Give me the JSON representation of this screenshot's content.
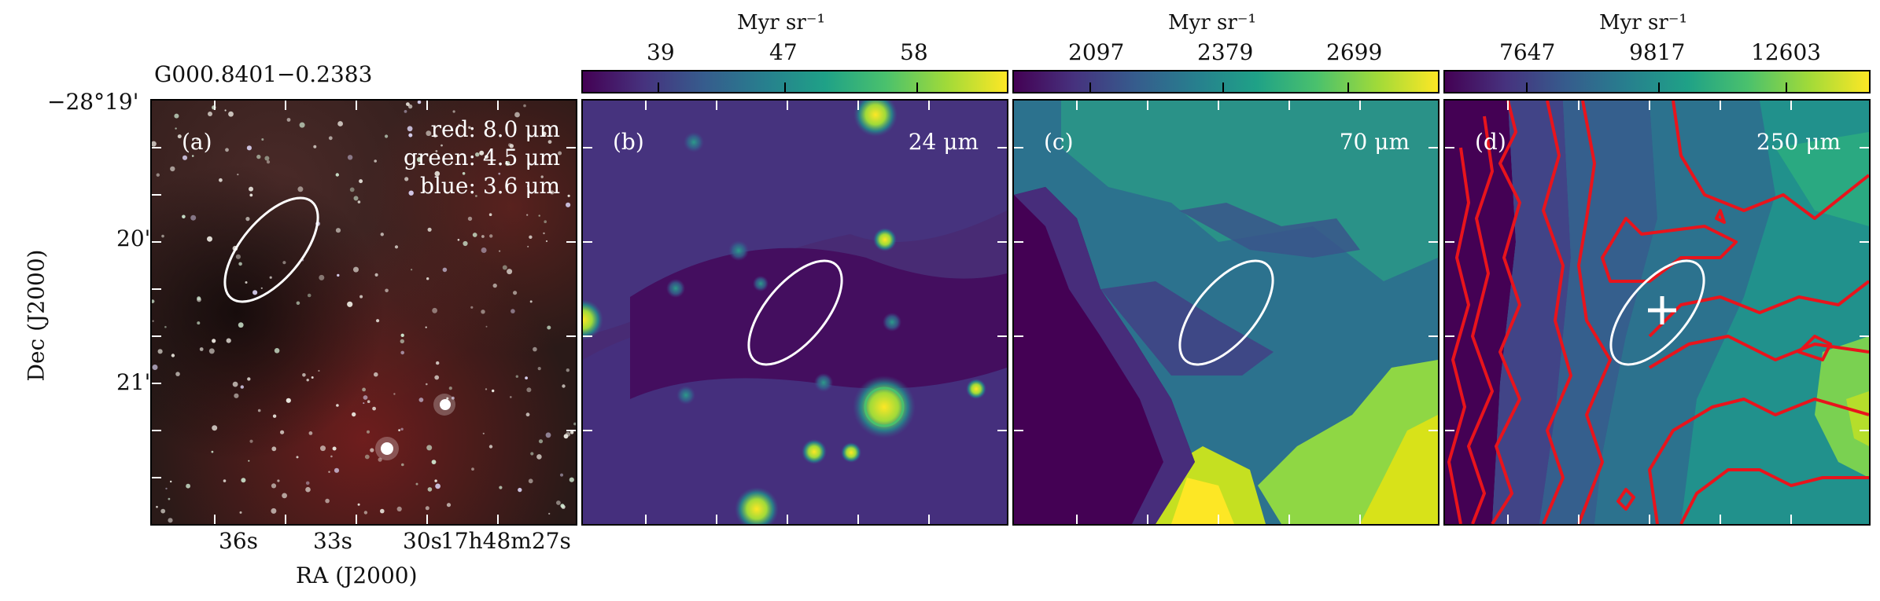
{
  "source_name": "G000.8401−0.2383",
  "axis": {
    "ylabel": "Dec (J2000)",
    "xlabel": "RA (J2000)",
    "dec_ticks": [
      "−28°19'",
      "20'",
      "21'"
    ],
    "ra_ticks": [
      "36s",
      "33s",
      "30s",
      "17h48m27s"
    ]
  },
  "colorbars": [
    {
      "title": "Myr sr⁻¹",
      "ticks": [
        "39",
        "47",
        "58"
      ],
      "colormap": "viridis"
    },
    {
      "title": "Myr sr⁻¹",
      "ticks": [
        "2097",
        "2379",
        "2699"
      ],
      "colormap": "viridis"
    },
    {
      "title": "Myr sr⁻¹",
      "ticks": [
        "7647",
        "9817",
        "12603"
      ],
      "colormap": "viridis"
    }
  ],
  "panels": [
    {
      "tag": "(a)",
      "bands": [
        "red: 8.0 μm",
        "green: 4.5 μm",
        "blue: 3.6 μm"
      ]
    },
    {
      "tag": "(b)",
      "wavelength": "24 μm"
    },
    {
      "tag": "(c)",
      "wavelength": "70 μm"
    },
    {
      "tag": "(d)",
      "wavelength": "250 μm"
    }
  ],
  "colors": {
    "ellipse": "#ffffff",
    "contours": "#e8141c",
    "viridis_low": "#440154",
    "viridis_mid": "#21918c",
    "viridis_high": "#fde725"
  }
}
